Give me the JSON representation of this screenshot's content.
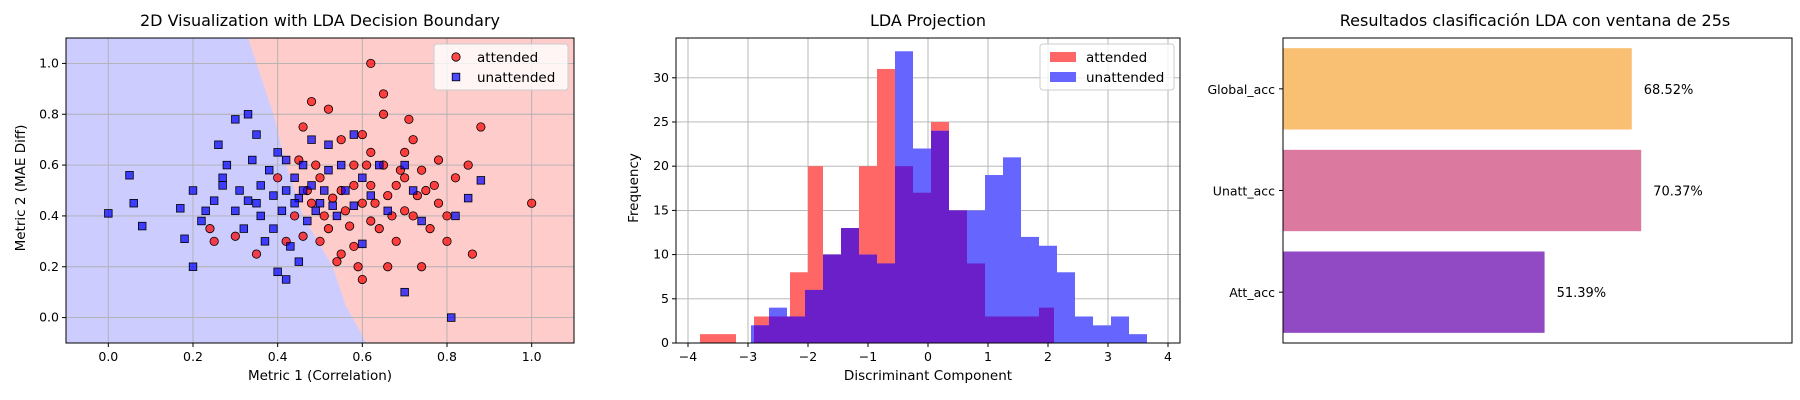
{
  "chart_data": [
    {
      "type": "scatter",
      "title": "2D Visualization with LDA Decision Boundary",
      "xlabel": "Metric 1 (Correlation)",
      "ylabel": "Metric 2 (MAE Diff)",
      "xlim": [
        -0.1,
        1.1
      ],
      "ylim": [
        -0.1,
        1.1
      ],
      "xticks": [
        "0.0",
        "0.2",
        "0.4",
        "0.6",
        "0.8",
        "1.0"
      ],
      "yticks": [
        "0.0",
        "0.2",
        "0.4",
        "0.6",
        "0.8",
        "1.0"
      ],
      "grid": true,
      "legend_position": "top-right",
      "boundary": [
        [
          0.33,
          1.1
        ],
        [
          0.39,
          0.8
        ],
        [
          0.42,
          0.6
        ],
        [
          0.46,
          0.4
        ],
        [
          0.53,
          0.2
        ],
        [
          0.56,
          0.05
        ],
        [
          0.61,
          -0.1
        ]
      ],
      "regions": [
        {
          "name": "unattended",
          "color": "#ccccff"
        },
        {
          "name": "attended",
          "color": "#ffcccc"
        }
      ],
      "series": [
        {
          "name": "attended",
          "marker": "circle",
          "color": "#ff0000",
          "points": [
            [
              0.45,
              0.62
            ],
            [
              0.5,
              0.55
            ],
            [
              0.55,
              0.5
            ],
            [
              0.6,
              0.45
            ],
            [
              0.62,
              0.38
            ],
            [
              0.65,
              0.6
            ],
            [
              0.7,
              0.55
            ],
            [
              0.72,
              0.4
            ],
            [
              0.68,
              0.3
            ],
            [
              0.58,
              0.28
            ],
            [
              0.52,
              0.35
            ],
            [
              0.48,
              0.45
            ],
            [
              0.55,
              0.7
            ],
            [
              0.6,
              0.72
            ],
            [
              0.65,
              0.8
            ],
            [
              0.7,
              0.65
            ],
            [
              0.75,
              0.5
            ],
            [
              0.78,
              0.45
            ],
            [
              0.8,
              0.3
            ],
            [
              0.74,
              0.2
            ],
            [
              0.66,
              0.2
            ],
            [
              0.6,
              0.15
            ],
            [
              0.54,
              0.22
            ],
            [
              0.5,
              0.3
            ],
            [
              0.47,
              0.5
            ],
            [
              0.44,
              0.4
            ],
            [
              0.42,
              0.3
            ],
            [
              0.4,
              0.55
            ],
            [
              0.46,
              0.75
            ],
            [
              0.52,
              0.82
            ],
            [
              0.58,
              0.6
            ],
            [
              0.62,
              0.52
            ],
            [
              0.66,
              0.48
            ],
            [
              0.7,
              0.42
            ],
            [
              0.74,
              0.58
            ],
            [
              0.78,
              0.62
            ],
            [
              0.82,
              0.55
            ],
            [
              0.85,
              0.6
            ],
            [
              0.88,
              0.75
            ],
            [
              0.86,
              0.25
            ],
            [
              1.0,
              0.45
            ],
            [
              0.62,
              1.0
            ],
            [
              0.65,
              0.88
            ],
            [
              0.48,
              0.85
            ],
            [
              0.35,
              0.25
            ],
            [
              0.25,
              0.3
            ],
            [
              0.24,
              0.35
            ],
            [
              0.3,
              0.32
            ],
            [
              0.56,
              0.42
            ],
            [
              0.64,
              0.35
            ],
            [
              0.68,
              0.52
            ],
            [
              0.72,
              0.7
            ],
            [
              0.76,
              0.35
            ],
            [
              0.58,
              0.52
            ],
            [
              0.53,
              0.47
            ],
            [
              0.51,
              0.4
            ],
            [
              0.57,
              0.36
            ],
            [
              0.61,
              0.6
            ],
            [
              0.63,
              0.45
            ],
            [
              0.67,
              0.4
            ],
            [
              0.69,
              0.58
            ],
            [
              0.73,
              0.48
            ],
            [
              0.55,
              0.25
            ],
            [
              0.59,
              0.2
            ],
            [
              0.62,
              0.65
            ],
            [
              0.49,
              0.6
            ],
            [
              0.46,
              0.32
            ],
            [
              0.71,
              0.78
            ],
            [
              0.8,
              0.4
            ],
            [
              0.77,
              0.52
            ]
          ]
        },
        {
          "name": "unattended",
          "marker": "square",
          "color": "#0000ff",
          "points": [
            [
              0.0,
              0.41
            ],
            [
              0.05,
              0.56
            ],
            [
              0.06,
              0.45
            ],
            [
              0.08,
              0.36
            ],
            [
              0.17,
              0.43
            ],
            [
              0.18,
              0.31
            ],
            [
              0.2,
              0.5
            ],
            [
              0.2,
              0.2
            ],
            [
              0.22,
              0.38
            ],
            [
              0.25,
              0.46
            ],
            [
              0.26,
              0.68
            ],
            [
              0.27,
              0.55
            ],
            [
              0.28,
              0.6
            ],
            [
              0.3,
              0.42
            ],
            [
              0.31,
              0.5
            ],
            [
              0.32,
              0.35
            ],
            [
              0.33,
              0.8
            ],
            [
              0.34,
              0.62
            ],
            [
              0.35,
              0.45
            ],
            [
              0.36,
              0.52
            ],
            [
              0.37,
              0.3
            ],
            [
              0.38,
              0.58
            ],
            [
              0.39,
              0.48
            ],
            [
              0.4,
              0.65
            ],
            [
              0.41,
              0.42
            ],
            [
              0.42,
              0.5
            ],
            [
              0.43,
              0.28
            ],
            [
              0.44,
              0.55
            ],
            [
              0.45,
              0.47
            ],
            [
              0.46,
              0.6
            ],
            [
              0.47,
              0.38
            ],
            [
              0.48,
              0.52
            ],
            [
              0.5,
              0.45
            ],
            [
              0.52,
              0.58
            ],
            [
              0.54,
              0.4
            ],
            [
              0.55,
              0.6
            ],
            [
              0.56,
              0.5
            ],
            [
              0.58,
              0.44
            ],
            [
              0.6,
              0.55
            ],
            [
              0.62,
              0.48
            ],
            [
              0.64,
              0.6
            ],
            [
              0.66,
              0.42
            ],
            [
              0.7,
              0.6
            ],
            [
              0.72,
              0.5
            ],
            [
              0.74,
              0.38
            ],
            [
              0.82,
              0.4
            ],
            [
              0.85,
              0.47
            ],
            [
              0.88,
              0.54
            ],
            [
              0.7,
              0.1
            ],
            [
              0.81,
              0.0
            ],
            [
              0.42,
              0.15
            ],
            [
              0.4,
              0.18
            ],
            [
              0.45,
              0.22
            ],
            [
              0.6,
              0.29
            ],
            [
              0.35,
              0.72
            ],
            [
              0.3,
              0.78
            ],
            [
              0.48,
              0.7
            ],
            [
              0.52,
              0.68
            ],
            [
              0.58,
              0.72
            ],
            [
              0.23,
              0.42
            ],
            [
              0.27,
              0.52
            ],
            [
              0.33,
              0.46
            ],
            [
              0.36,
              0.4
            ],
            [
              0.39,
              0.35
            ],
            [
              0.42,
              0.62
            ],
            [
              0.44,
              0.45
            ],
            [
              0.46,
              0.5
            ],
            [
              0.49,
              0.42
            ],
            [
              0.51,
              0.5
            ],
            [
              0.53,
              0.44
            ]
          ]
        }
      ]
    },
    {
      "type": "bar",
      "subtype": "overlapping-histogram",
      "title": "LDA Projection",
      "xlabel": "Discriminant Component",
      "ylabel": "Frequency",
      "xlim": [
        -4.2,
        4.2
      ],
      "ylim": [
        0,
        34.5
      ],
      "xticks": [
        "−4",
        "−3",
        "−2",
        "−1",
        "0",
        "1",
        "2",
        "3",
        "4"
      ],
      "yticks": [
        "0",
        "5",
        "10",
        "15",
        "20",
        "25",
        "30"
      ],
      "grid": true,
      "legend_position": "top-right",
      "overlap_color": "#6a1fc8",
      "series": [
        {
          "name": "attended",
          "color": "#ff6666",
          "bins": [
            [
              -3.8,
              -3.5,
              1
            ],
            [
              -3.5,
              -3.2,
              1
            ],
            [
              -2.9,
              -2.6,
              3
            ],
            [
              -2.6,
              -2.3,
              3
            ],
            [
              -2.3,
              -2.0,
              8
            ],
            [
              -2.0,
              -1.75,
              20
            ],
            [
              -1.75,
              -1.45,
              10
            ],
            [
              -1.45,
              -1.15,
              13
            ],
            [
              -1.15,
              -0.85,
              20
            ],
            [
              -0.85,
              -0.55,
              31
            ],
            [
              -0.55,
              -0.25,
              20
            ],
            [
              -0.25,
              0.05,
              17
            ],
            [
              0.05,
              0.35,
              25
            ],
            [
              0.35,
              0.65,
              15
            ],
            [
              0.65,
              0.95,
              9
            ],
            [
              0.95,
              1.25,
              3
            ],
            [
              1.25,
              1.55,
              3
            ],
            [
              1.55,
              1.85,
              3
            ],
            [
              1.85,
              2.1,
              4
            ]
          ]
        },
        {
          "name": "unattended",
          "color": "#6666ff",
          "bins": [
            [
              -2.95,
              -2.65,
              2
            ],
            [
              -2.65,
              -2.35,
              4
            ],
            [
              -2.35,
              -2.05,
              3
            ],
            [
              -2.05,
              -1.75,
              6
            ],
            [
              -1.75,
              -1.45,
              10
            ],
            [
              -1.45,
              -1.15,
              13
            ],
            [
              -1.15,
              -0.85,
              10
            ],
            [
              -0.85,
              -0.55,
              9
            ],
            [
              -0.55,
              -0.25,
              33
            ],
            [
              -0.25,
              0.05,
              22
            ],
            [
              0.05,
              0.35,
              24
            ],
            [
              0.35,
              0.65,
              15
            ],
            [
              0.65,
              0.95,
              15
            ],
            [
              0.95,
              1.25,
              19
            ],
            [
              1.25,
              1.55,
              21
            ],
            [
              1.55,
              1.85,
              12
            ],
            [
              1.85,
              2.15,
              11
            ],
            [
              2.15,
              2.45,
              8
            ],
            [
              2.45,
              2.75,
              3
            ],
            [
              2.75,
              3.05,
              2
            ],
            [
              3.05,
              3.35,
              3
            ],
            [
              3.35,
              3.65,
              1
            ]
          ]
        }
      ]
    },
    {
      "type": "bar",
      "orientation": "horizontal",
      "title": "Resultados clasificación LDA con ventana de 25s",
      "categories": [
        "Global_acc",
        "Unatt_acc",
        "Att_acc"
      ],
      "values": [
        68.52,
        70.37,
        51.39
      ],
      "value_labels": [
        "68.52%",
        "70.37%",
        "51.39%"
      ],
      "colors": [
        "#f9bf72",
        "#db7a9e",
        "#9149c4"
      ],
      "xlim": [
        0,
        100
      ],
      "grid": false,
      "axis_ticks_x": false
    }
  ]
}
